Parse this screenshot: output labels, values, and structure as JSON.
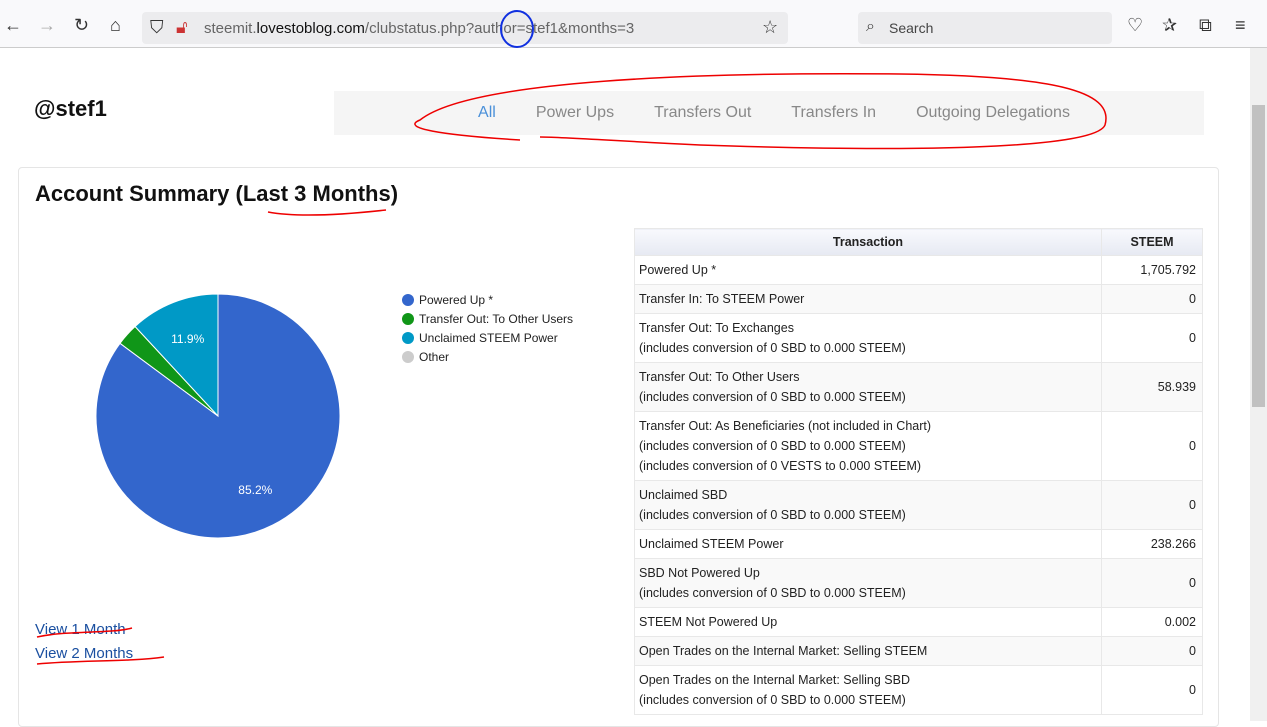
{
  "browser": {
    "url_prefix": "steemit.",
    "url_domain": "lovestoblog.com",
    "url_path": "/clubstatus.php?author=stef1&months=3",
    "search_placeholder": "Search"
  },
  "page": {
    "username": "@stef1",
    "nav": [
      {
        "label": "All",
        "active": true
      },
      {
        "label": "Power Ups"
      },
      {
        "label": "Transfers Out"
      },
      {
        "label": "Transfers In"
      },
      {
        "label": "Outgoing Delegations"
      }
    ],
    "summary_title": "Account Summary (Last 3 Months)",
    "links": [
      "View 1 Month",
      "View 2 Months"
    ]
  },
  "table": {
    "headers": [
      "Transaction",
      "STEEM"
    ],
    "rows": [
      {
        "label": [
          "Powered Up *"
        ],
        "value": "1,705.792"
      },
      {
        "label": [
          "Transfer In: To STEEM Power"
        ],
        "value": "0"
      },
      {
        "label": [
          "Transfer Out: To Exchanges",
          "(includes conversion of 0 SBD to 0.000 STEEM)"
        ],
        "value": "0"
      },
      {
        "label": [
          "Transfer Out: To Other Users",
          "(includes conversion of 0 SBD to 0.000 STEEM)"
        ],
        "value": "58.939"
      },
      {
        "label": [
          "Transfer Out: As Beneficiaries (not included in Chart)",
          "(includes conversion of 0 SBD to 0.000 STEEM)",
          "(includes conversion of 0 VESTS to 0.000 STEEM)"
        ],
        "value": "0"
      },
      {
        "label": [
          "Unclaimed SBD",
          "(includes conversion of 0 SBD to 0.000 STEEM)"
        ],
        "value": "0"
      },
      {
        "label": [
          "Unclaimed STEEM Power"
        ],
        "value": "238.266"
      },
      {
        "label": [
          "SBD Not Powered Up",
          "(includes conversion of 0 SBD to 0.000 STEEM)"
        ],
        "value": "0"
      },
      {
        "label": [
          "STEEM Not Powered Up"
        ],
        "value": "0.002"
      },
      {
        "label": [
          "Open Trades on the Internal Market: Selling STEEM"
        ],
        "value": "0"
      },
      {
        "label": [
          "Open Trades on the Internal Market: Selling SBD",
          "(includes conversion of 0 SBD to 0.000 STEEM)"
        ],
        "value": "0"
      }
    ]
  },
  "chart_data": {
    "type": "pie",
    "legend_position": "right",
    "categories": [
      "Powered Up *",
      "Transfer Out: To Other Users",
      "Unclaimed STEEM Power",
      "Other"
    ],
    "values": [
      1705.792,
      58.939,
      238.266,
      0
    ],
    "labels": [
      "85.2%",
      "",
      "11.9%",
      ""
    ],
    "colors": [
      "#3366cc",
      "#109618",
      "#0099c6",
      "#cccccc"
    ]
  }
}
